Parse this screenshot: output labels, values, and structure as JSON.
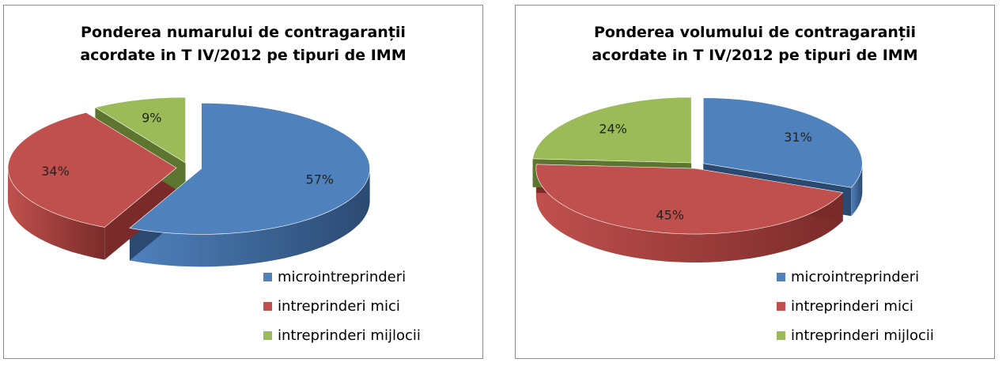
{
  "colors": {
    "series": [
      "#4f81bd",
      "#c0504d",
      "#9bbb59"
    ],
    "series_dark": [
      "#2b4a72",
      "#7a2b29",
      "#5e7530"
    ]
  },
  "chart_data": [
    {
      "type": "pie",
      "style": "3d-exploded",
      "title": "Ponderea numarului de  contragaranții\nacordate in T IV/2012 pe tipuri de IMM",
      "categories": [
        "microintreprinderi",
        "intreprinderi mici",
        "intreprinderi mijlocii"
      ],
      "values": [
        57,
        34,
        9
      ],
      "data_labels": [
        "57%",
        "34%",
        "9%"
      ],
      "legend": "bottom-right"
    },
    {
      "type": "pie",
      "style": "3d-exploded",
      "title": "Ponderea volumului de contragaranții\nacordate in  T IV/2012 pe tipuri de IMM",
      "categories": [
        "microintreprinderi",
        "intreprinderi mici",
        "intreprinderi mijlocii"
      ],
      "values": [
        31,
        45,
        24
      ],
      "data_labels": [
        "31%",
        "45%",
        "24%"
      ],
      "legend": "bottom-right"
    }
  ]
}
